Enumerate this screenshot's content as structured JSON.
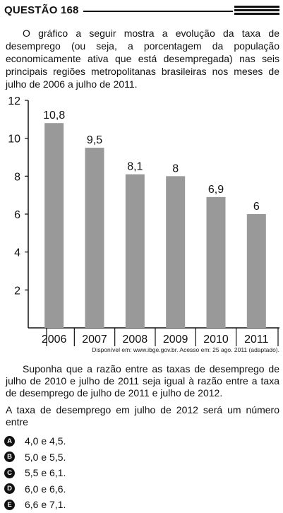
{
  "header": {
    "title": "QUESTÃO 168"
  },
  "intro": "O gráfico a seguir mostra a evolução da taxa de desemprego (ou seja, a porcentagem da população economicamente ativa que está desempregada) nas seis principais regiões metropolitanas brasileiras nos meses de julho de 2006 a julho de 2011.",
  "chart_data": {
    "type": "bar",
    "categories": [
      "2006",
      "2007",
      "2008",
      "2009",
      "2010",
      "2011"
    ],
    "values": [
      10.8,
      9.5,
      8.1,
      8,
      6.9,
      6
    ],
    "value_labels": [
      "10,8",
      "9,5",
      "8,1",
      "8",
      "6,9",
      "6"
    ],
    "yticks": [
      "2",
      "4",
      "6",
      "8",
      "10",
      "12"
    ],
    "ylim": [
      0,
      12
    ],
    "grid": false,
    "bar_color": "#999999",
    "title": "",
    "xlabel": "",
    "ylabel": ""
  },
  "source": "Disponível em: www.ibge.gov.br. Acesso em: 25 ago. 2011 (adaptado).",
  "suppose": "Suponha que a razão entre as taxas de desemprego de julho de 2010 e julho de 2011 seja igual à razão entre a taxa de desemprego de julho de 2011 e julho de 2012.",
  "question": "A taxa de desemprego em julho de 2012 será um número entre",
  "options": [
    {
      "letter": "A",
      "text": "4,0 e 4,5."
    },
    {
      "letter": "B",
      "text": "5,0 e 5,5."
    },
    {
      "letter": "C",
      "text": "5,5 e 6,1."
    },
    {
      "letter": "D",
      "text": "6,0 e 6,6."
    },
    {
      "letter": "E",
      "text": "6,6 e 7,1."
    }
  ]
}
